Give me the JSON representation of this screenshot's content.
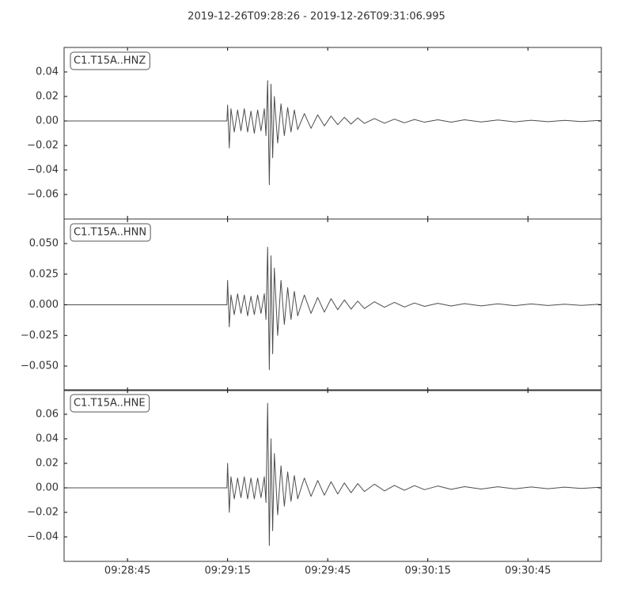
{
  "title": "2019-12-26T09:28:26  -  2019-12-26T09:31:06.995",
  "chart_data": [
    {
      "type": "line",
      "label": "C1.T15A..HNZ",
      "color": "#4d4d4d",
      "xlim": [
        0,
        161
      ],
      "ylim": [
        -0.08,
        0.06
      ],
      "yticks": [
        {
          "value": -0.06,
          "label": "−0.06"
        },
        {
          "value": -0.04,
          "label": "−0.04"
        },
        {
          "value": -0.02,
          "label": "−0.02"
        },
        {
          "value": 0,
          "label": "0.00"
        },
        {
          "value": 0.02,
          "label": "0.02"
        },
        {
          "value": 0.04,
          "label": "0.04"
        }
      ],
      "x": [
        0,
        48.8,
        49,
        49.5,
        50,
        51,
        52,
        53,
        54,
        55,
        56,
        57,
        58,
        59,
        60,
        60.5,
        61,
        61.5,
        62,
        62.5,
        63,
        64,
        65,
        66,
        67,
        68,
        69,
        70,
        72,
        74,
        76,
        78,
        80,
        82,
        84,
        86,
        88,
        90,
        93,
        96,
        99,
        102,
        105,
        108,
        112,
        116,
        120,
        125,
        130,
        135,
        140,
        145,
        150,
        155,
        160,
        161
      ],
      "values": [
        0,
        0,
        0.013,
        -0.022,
        0.01,
        -0.009,
        0.009,
        -0.008,
        0.01,
        -0.009,
        0.008,
        -0.01,
        0.009,
        -0.008,
        0.01,
        -0.012,
        0.033,
        -0.052,
        0.03,
        -0.03,
        0.02,
        -0.018,
        0.014,
        -0.012,
        0.011,
        -0.009,
        0.009,
        -0.007,
        0.006,
        -0.006,
        0.005,
        -0.004,
        0.004,
        -0.003,
        0.003,
        -0.0025,
        0.0025,
        -0.002,
        0.002,
        -0.0018,
        0.0015,
        -0.0015,
        0.0012,
        -0.001,
        0.001,
        -0.001,
        0.001,
        -0.0008,
        0.0008,
        -0.0007,
        0.0006,
        -0.0006,
        0.0005,
        -0.0005,
        0.0004,
        0
      ]
    },
    {
      "type": "line",
      "label": "C1.T15A..HNN",
      "color": "#4d4d4d",
      "xlim": [
        0,
        161
      ],
      "ylim": [
        -0.07,
        0.07
      ],
      "yticks": [
        {
          "value": -0.05,
          "label": "−0.050"
        },
        {
          "value": -0.025,
          "label": "−0.025"
        },
        {
          "value": 0,
          "label": "0.000"
        },
        {
          "value": 0.025,
          "label": "0.025"
        },
        {
          "value": 0.05,
          "label": "0.050"
        }
      ],
      "x": [
        0,
        48.8,
        49,
        49.5,
        50,
        51,
        52,
        53,
        54,
        55,
        56,
        57,
        58,
        59,
        60,
        60.5,
        61,
        61.5,
        62,
        62.5,
        63,
        64,
        65,
        66,
        67,
        68,
        69,
        70,
        72,
        74,
        76,
        78,
        80,
        82,
        84,
        86,
        88,
        90,
        93,
        96,
        99,
        102,
        105,
        108,
        112,
        116,
        120,
        125,
        130,
        135,
        140,
        145,
        150,
        155,
        160,
        161
      ],
      "values": [
        0,
        0,
        0.02,
        -0.018,
        0.008,
        -0.008,
        0.009,
        -0.007,
        0.008,
        -0.009,
        0.007,
        -0.008,
        0.008,
        -0.007,
        0.009,
        -0.012,
        0.047,
        -0.053,
        0.04,
        -0.04,
        0.03,
        -0.025,
        0.02,
        -0.016,
        0.014,
        -0.012,
        0.011,
        -0.009,
        0.008,
        -0.007,
        0.006,
        -0.006,
        0.005,
        -0.004,
        0.004,
        -0.0035,
        0.003,
        -0.003,
        0.0025,
        -0.002,
        0.002,
        -0.0018,
        0.0015,
        -0.0013,
        0.0012,
        -0.001,
        0.001,
        -0.0009,
        0.0008,
        -0.0007,
        0.0007,
        -0.0006,
        0.0005,
        -0.0005,
        0.0004,
        0
      ]
    },
    {
      "type": "line",
      "label": "C1.T15A..HNE",
      "color": "#4d4d4d",
      "xlim": [
        0,
        161
      ],
      "ylim": [
        -0.06,
        0.08
      ],
      "yticks": [
        {
          "value": -0.04,
          "label": "−0.04"
        },
        {
          "value": -0.02,
          "label": "−0.02"
        },
        {
          "value": 0,
          "label": "0.00"
        },
        {
          "value": 0.02,
          "label": "0.02"
        },
        {
          "value": 0.04,
          "label": "0.04"
        },
        {
          "value": 0.06,
          "label": "0.06"
        }
      ],
      "xticks": [
        {
          "value": 19,
          "label": "09:28:45"
        },
        {
          "value": 49,
          "label": "09:29:15"
        },
        {
          "value": 79,
          "label": "09:29:45"
        },
        {
          "value": 109,
          "label": "09:30:15"
        },
        {
          "value": 139,
          "label": "09:30:45"
        }
      ],
      "x": [
        0,
        48.8,
        49,
        49.5,
        50,
        51,
        52,
        53,
        54,
        55,
        56,
        57,
        58,
        59,
        60,
        60.5,
        61,
        61.5,
        62,
        62.5,
        63,
        64,
        65,
        66,
        67,
        68,
        69,
        70,
        72,
        74,
        76,
        78,
        80,
        82,
        84,
        86,
        88,
        90,
        93,
        96,
        99,
        102,
        105,
        108,
        112,
        116,
        120,
        125,
        130,
        135,
        140,
        145,
        150,
        155,
        160,
        161
      ],
      "values": [
        0,
        0,
        0.02,
        -0.02,
        0.009,
        -0.009,
        0.008,
        -0.008,
        0.009,
        -0.009,
        0.008,
        -0.009,
        0.008,
        -0.008,
        0.009,
        -0.012,
        0.069,
        -0.047,
        0.04,
        -0.035,
        0.028,
        -0.022,
        0.018,
        -0.015,
        0.013,
        -0.011,
        0.01,
        -0.009,
        0.008,
        -0.007,
        0.006,
        -0.006,
        0.005,
        -0.005,
        0.004,
        -0.004,
        0.0035,
        -0.003,
        0.003,
        -0.0025,
        0.002,
        -0.002,
        0.0018,
        -0.0015,
        0.0015,
        -0.0012,
        0.001,
        -0.001,
        0.0009,
        -0.0008,
        0.0007,
        -0.0007,
        0.0006,
        -0.0005,
        0.0004,
        0
      ]
    }
  ]
}
